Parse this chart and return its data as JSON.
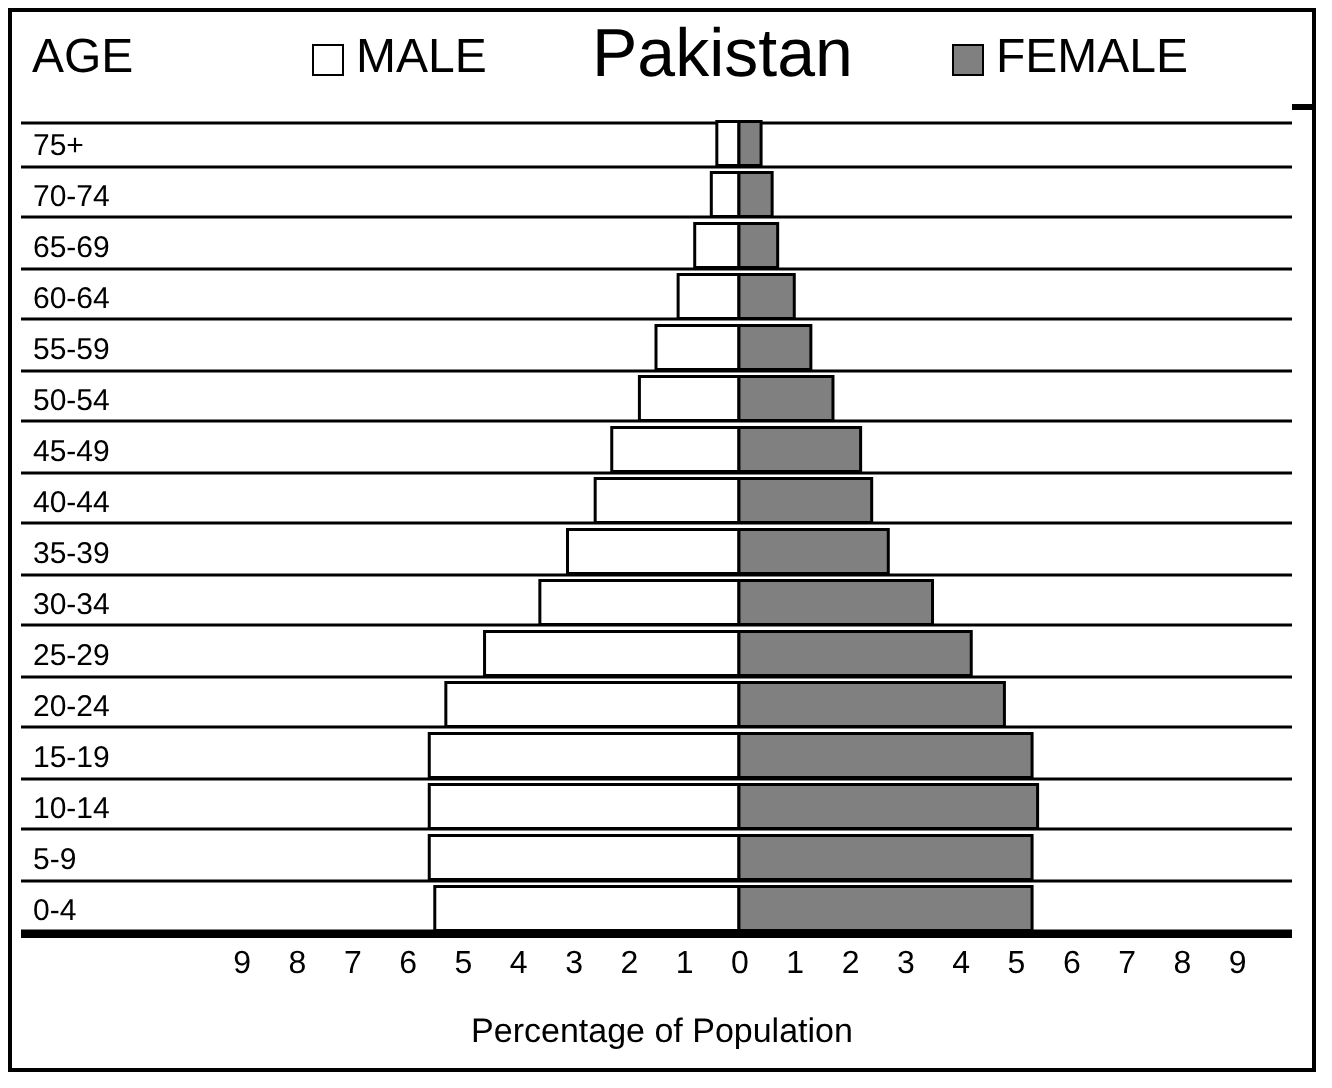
{
  "chart_data": {
    "type": "bar",
    "orientation": "horizontal",
    "title": "Pakistan",
    "ylabel": "AGE",
    "xlabel": "Percentage of Population",
    "categories": [
      "75+",
      "70-74",
      "65-69",
      "60-64",
      "55-59",
      "50-54",
      "45-49",
      "40-44",
      "35-39",
      "30-34",
      "25-29",
      "20-24",
      "15-19",
      "10-14",
      "5-9",
      "0-4"
    ],
    "series": [
      {
        "name": "MALE",
        "color": "#ffffff",
        "values": [
          -0.4,
          -0.5,
          -0.8,
          -1.1,
          -1.5,
          -1.8,
          -2.3,
          -2.6,
          -3.1,
          -3.6,
          -4.6,
          -5.3,
          -5.6,
          -5.6,
          -5.6,
          -5.5
        ]
      },
      {
        "name": "FEMALE",
        "color": "#808080",
        "values": [
          0.4,
          0.6,
          0.7,
          1.0,
          1.3,
          1.7,
          2.2,
          2.4,
          2.7,
          3.5,
          4.2,
          4.8,
          5.3,
          5.4,
          5.3,
          5.3
        ]
      }
    ],
    "xlim": [
      -13,
      10
    ],
    "xticks": [
      {
        "value": -9,
        "label": "9"
      },
      {
        "value": -8,
        "label": "8"
      },
      {
        "value": -7,
        "label": "7"
      },
      {
        "value": -6,
        "label": "6"
      },
      {
        "value": -5,
        "label": "5"
      },
      {
        "value": -4,
        "label": "4"
      },
      {
        "value": -3,
        "label": "3"
      },
      {
        "value": -2,
        "label": "2"
      },
      {
        "value": -1,
        "label": "1"
      },
      0,
      1,
      2,
      3,
      4,
      5,
      6,
      7,
      8,
      9
    ],
    "grid": "y",
    "stacked": true,
    "legend": "top"
  }
}
